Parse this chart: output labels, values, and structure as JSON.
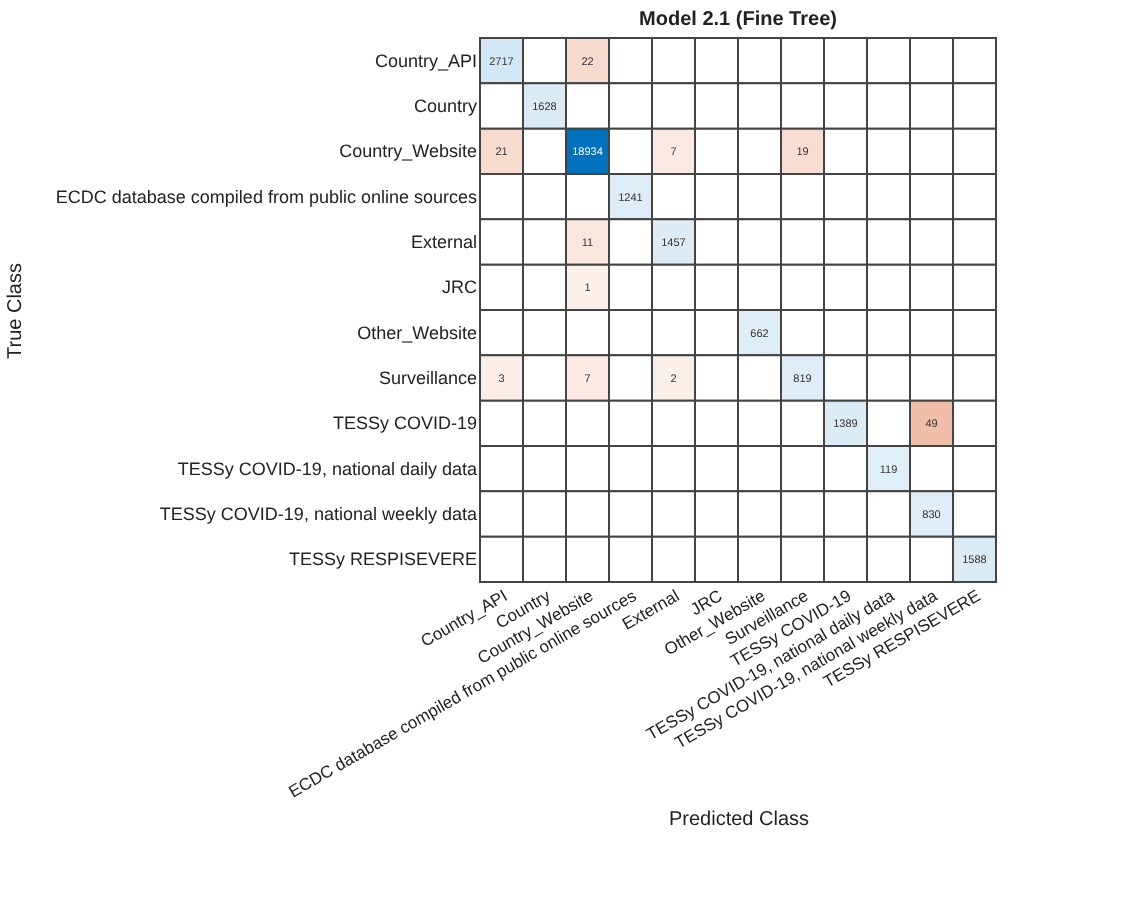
{
  "chart_data": {
    "type": "heatmap",
    "title": "Model 2.1 (Fine Tree)",
    "xlabel": "Predicted Class",
    "ylabel": "True Class",
    "categories": [
      "Country_API",
      "Country",
      "Country_Website",
      "ECDC database compiled from public online sources",
      "External",
      "JRC",
      "Other_Website",
      "Surveillance",
      "TESSy COVID-19",
      "TESSy COVID-19, national daily data",
      "TESSy COVID-19, national weekly data",
      "TESSy RESPISEVERE"
    ],
    "y_categories": [
      "Country_API",
      "Country",
      "Country_Website",
      "ECDC database compiled from public online sources",
      "External",
      "JRC",
      "Other_Website",
      "Surveillance",
      "TESSy COVID-19",
      "TESSy COVID-19, national daily data",
      "TESSy COVID-19, national weekly data",
      "TESSy RESPISEVERE"
    ],
    "cells": [
      [
        2717,
        null,
        22,
        null,
        null,
        null,
        null,
        null,
        null,
        null,
        null,
        null
      ],
      [
        null,
        1628,
        null,
        null,
        null,
        null,
        null,
        null,
        null,
        null,
        null,
        null
      ],
      [
        21,
        null,
        18934,
        null,
        7,
        null,
        null,
        19,
        null,
        null,
        null,
        null
      ],
      [
        null,
        null,
        null,
        1241,
        null,
        null,
        null,
        null,
        null,
        null,
        null,
        null
      ],
      [
        null,
        null,
        11,
        null,
        1457,
        null,
        null,
        null,
        null,
        null,
        null,
        null
      ],
      [
        null,
        null,
        1,
        null,
        null,
        null,
        null,
        null,
        null,
        null,
        null,
        null
      ],
      [
        null,
        null,
        null,
        null,
        null,
        null,
        662,
        null,
        null,
        null,
        null,
        null
      ],
      [
        3,
        null,
        7,
        null,
        2,
        null,
        null,
        819,
        null,
        null,
        null,
        null
      ],
      [
        null,
        null,
        null,
        null,
        null,
        null,
        null,
        null,
        1389,
        null,
        49,
        null
      ],
      [
        null,
        null,
        null,
        null,
        null,
        null,
        null,
        null,
        null,
        119,
        null,
        null
      ],
      [
        null,
        null,
        null,
        null,
        null,
        null,
        null,
        null,
        null,
        null,
        830,
        null
      ],
      [
        null,
        null,
        null,
        null,
        null,
        null,
        null,
        null,
        null,
        null,
        null,
        1588
      ]
    ],
    "data_labels": true
  }
}
